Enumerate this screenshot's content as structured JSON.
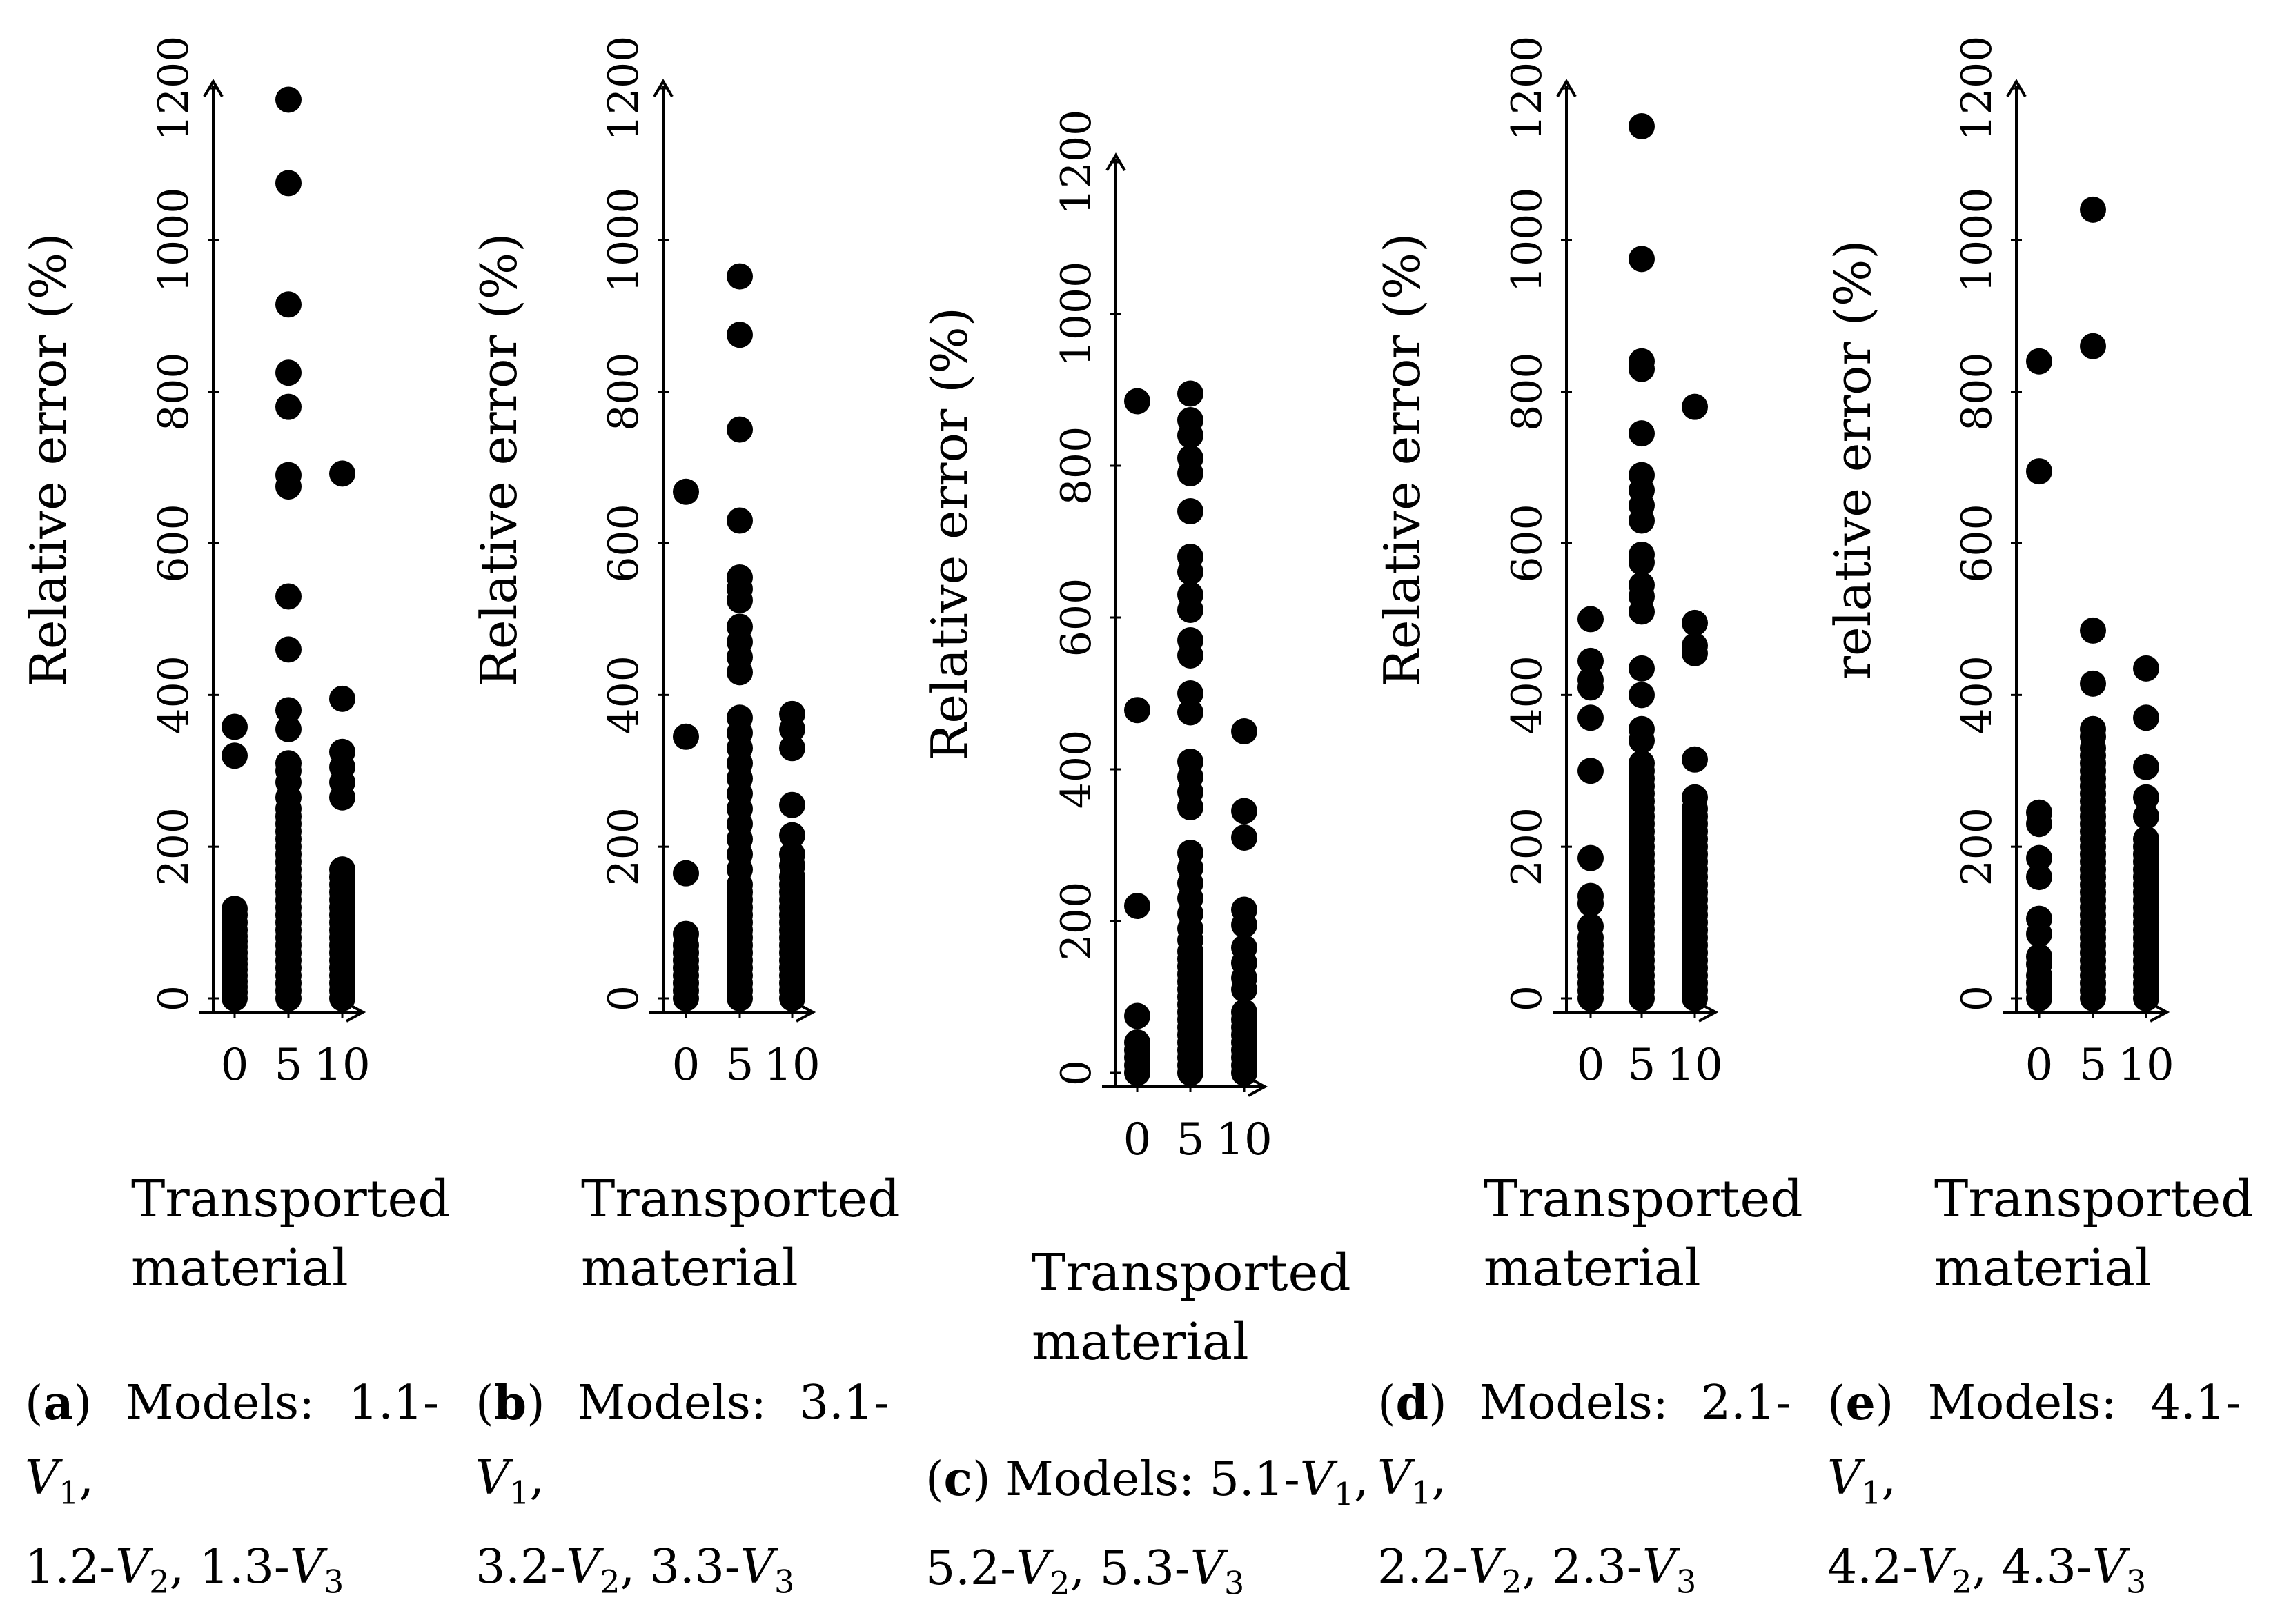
{
  "chart_data": [
    {
      "type": "scatter",
      "panel": "a",
      "ylabel": "Relative error (%)",
      "xlabel": "Transported material",
      "x_ticks": [
        "0",
        "5",
        "10"
      ],
      "y_ticks": [
        "0",
        "200",
        "400",
        "600",
        "800",
        "1000",
        "1200"
      ],
      "ylim": [
        0,
        1200
      ],
      "series": [
        {
          "x": 0,
          "values": [
            0,
            8,
            15,
            22,
            30,
            38,
            45,
            52,
            60,
            68,
            75,
            82,
            90,
            100,
            110,
            118,
            320,
            358
          ]
        },
        {
          "x": 5,
          "values": [
            0,
            10,
            20,
            30,
            40,
            50,
            60,
            70,
            80,
            90,
            100,
            110,
            120,
            130,
            140,
            150,
            160,
            170,
            180,
            190,
            200,
            210,
            220,
            230,
            240,
            250,
            265,
            285,
            300,
            310,
            355,
            380,
            460,
            530,
            675,
            690,
            780,
            825,
            915,
            1075,
            1185
          ]
        },
        {
          "x": 10,
          "values": [
            0,
            10,
            20,
            30,
            40,
            50,
            60,
            70,
            80,
            90,
            100,
            110,
            120,
            130,
            140,
            150,
            160,
            170,
            265,
            285,
            305,
            325,
            395,
            692
          ]
        }
      ],
      "caption": {
        "label": "a",
        "models_word": "Models:",
        "first_code": "1.1-",
        "v1": "V",
        "v1_sub": "1",
        "code2": "1.2-",
        "v2": "V",
        "v2_sub": "2",
        "code3": "1.3-",
        "v3": "V",
        "v3_sub": "3"
      }
    },
    {
      "type": "scatter",
      "panel": "b",
      "ylabel": "Relative error (%)",
      "xlabel": "Transported material",
      "x_ticks": [
        "0",
        "5",
        "10"
      ],
      "y_ticks": [
        "0",
        "200",
        "400",
        "600",
        "800",
        "1000",
        "1200"
      ],
      "ylim": [
        0,
        1200
      ],
      "series": [
        {
          "x": 0,
          "values": [
            0,
            10,
            20,
            30,
            40,
            50,
            60,
            70,
            85,
            165,
            345,
            668
          ]
        },
        {
          "x": 5,
          "values": [
            0,
            10,
            20,
            30,
            40,
            50,
            60,
            70,
            80,
            90,
            100,
            110,
            120,
            130,
            140,
            150,
            170,
            190,
            210,
            230,
            250,
            270,
            290,
            310,
            330,
            350,
            370,
            430,
            450,
            470,
            490,
            525,
            540,
            555,
            630,
            750,
            875,
            952
          ]
        },
        {
          "x": 10,
          "values": [
            0,
            10,
            20,
            30,
            40,
            50,
            60,
            70,
            80,
            90,
            100,
            110,
            120,
            130,
            140,
            150,
            160,
            175,
            190,
            215,
            255,
            330,
            355,
            375
          ]
        }
      ],
      "caption": {
        "label": "b",
        "models_word": "Models:",
        "first_code": "3.1-",
        "v1": "V",
        "v1_sub": "1",
        "code2": "3.2-",
        "v2": "V",
        "v2_sub": "2",
        "code3": "3.3-",
        "v3": "V",
        "v3_sub": "3"
      }
    },
    {
      "type": "scatter",
      "panel": "c",
      "ylabel": "Relative error (%)",
      "xlabel": "Transported material",
      "x_ticks": [
        "0",
        "5",
        "10"
      ],
      "y_ticks": [
        "0",
        "200",
        "400",
        "600",
        "800",
        "1000",
        "1200"
      ],
      "ylim": [
        0,
        1200
      ],
      "series": [
        {
          "x": 0,
          "values": [
            0,
            10,
            20,
            30,
            40,
            75,
            220,
            478,
            885
          ]
        },
        {
          "x": 5,
          "values": [
            0,
            10,
            20,
            30,
            40,
            50,
            60,
            70,
            80,
            90,
            100,
            110,
            120,
            130,
            140,
            150,
            160,
            175,
            190,
            210,
            230,
            250,
            270,
            290,
            350,
            370,
            390,
            410,
            475,
            500,
            550,
            570,
            610,
            630,
            660,
            680,
            740,
            790,
            810,
            840,
            860,
            895
          ]
        },
        {
          "x": 10,
          "values": [
            0,
            10,
            20,
            30,
            40,
            50,
            60,
            70,
            80,
            110,
            125,
            145,
            165,
            195,
            215,
            310,
            345,
            450
          ]
        }
      ],
      "caption": {
        "label": "c",
        "models_word": "Models:",
        "first_code": "5.1-",
        "v1": "V",
        "v1_sub": "1",
        "code2": "5.2-",
        "v2": "V",
        "v2_sub": "2",
        "code3": "5.3-",
        "v3": "V",
        "v3_sub": "3"
      }
    },
    {
      "type": "scatter",
      "panel": "d",
      "ylabel": "Relative error (%)",
      "xlabel": "Transported material",
      "x_ticks": [
        "0",
        "5",
        "10"
      ],
      "y_ticks": [
        "0",
        "200",
        "400",
        "600",
        "800",
        "1000",
        "1200"
      ],
      "ylim": [
        0,
        1200
      ],
      "series": [
        {
          "x": 0,
          "values": [
            0,
            10,
            20,
            30,
            40,
            50,
            60,
            70,
            80,
            95,
            125,
            135,
            185,
            300,
            370,
            410,
            420,
            445,
            500
          ]
        },
        {
          "x": 5,
          "values": [
            0,
            10,
            20,
            30,
            40,
            50,
            60,
            70,
            80,
            90,
            100,
            110,
            120,
            130,
            140,
            150,
            160,
            170,
            180,
            190,
            200,
            210,
            220,
            230,
            240,
            250,
            260,
            270,
            280,
            290,
            300,
            310,
            340,
            355,
            400,
            435,
            510,
            530,
            545,
            575,
            585,
            630,
            650,
            670,
            690,
            745,
            830,
            840,
            975,
            1150
          ]
        },
        {
          "x": 10,
          "values": [
            0,
            10,
            20,
            30,
            40,
            50,
            60,
            70,
            80,
            90,
            100,
            110,
            120,
            130,
            140,
            150,
            160,
            170,
            180,
            190,
            200,
            210,
            220,
            230,
            240,
            250,
            265,
            315,
            455,
            465,
            495,
            780
          ]
        }
      ],
      "caption": {
        "label": "d",
        "models_word": "Models:",
        "first_code": "2.1-",
        "v1": "V",
        "v1_sub": "1",
        "code2": "2.2-",
        "v2": "V",
        "v2_sub": "2",
        "code3": "2.3-",
        "v3": "V",
        "v3_sub": "3"
      }
    },
    {
      "type": "scatter",
      "panel": "e",
      "ylabel": "relative error (%)",
      "xlabel": "Transported material",
      "x_ticks": [
        "0",
        "5",
        "10"
      ],
      "y_ticks": [
        "0",
        "200",
        "400",
        "600",
        "800",
        "1000",
        "1200"
      ],
      "ylim": [
        0,
        1200
      ],
      "series": [
        {
          "x": 0,
          "values": [
            0,
            10,
            20,
            30,
            45,
            55,
            85,
            105,
            160,
            185,
            230,
            245,
            695,
            840
          ]
        },
        {
          "x": 5,
          "values": [
            0,
            10,
            20,
            30,
            40,
            50,
            60,
            70,
            80,
            90,
            100,
            110,
            120,
            130,
            140,
            150,
            160,
            170,
            180,
            190,
            200,
            210,
            220,
            230,
            240,
            250,
            260,
            270,
            280,
            290,
            300,
            310,
            320,
            330,
            345,
            355,
            415,
            485,
            860,
            1040
          ]
        },
        {
          "x": 10,
          "values": [
            0,
            10,
            20,
            30,
            40,
            50,
            60,
            70,
            80,
            90,
            100,
            110,
            120,
            130,
            140,
            150,
            160,
            170,
            180,
            190,
            200,
            210,
            240,
            265,
            305,
            370,
            435
          ]
        }
      ],
      "caption": {
        "label": "e",
        "models_word": "Models:",
        "first_code": "4.1-",
        "v1": "V",
        "v1_sub": "1",
        "code2": "4.2-",
        "v2": "V",
        "v2_sub": "2",
        "code3": "4.3-",
        "v3": "V",
        "v3_sub": "3"
      }
    }
  ],
  "colors": {
    "ink": "#000000",
    "background": "#ffffff"
  }
}
